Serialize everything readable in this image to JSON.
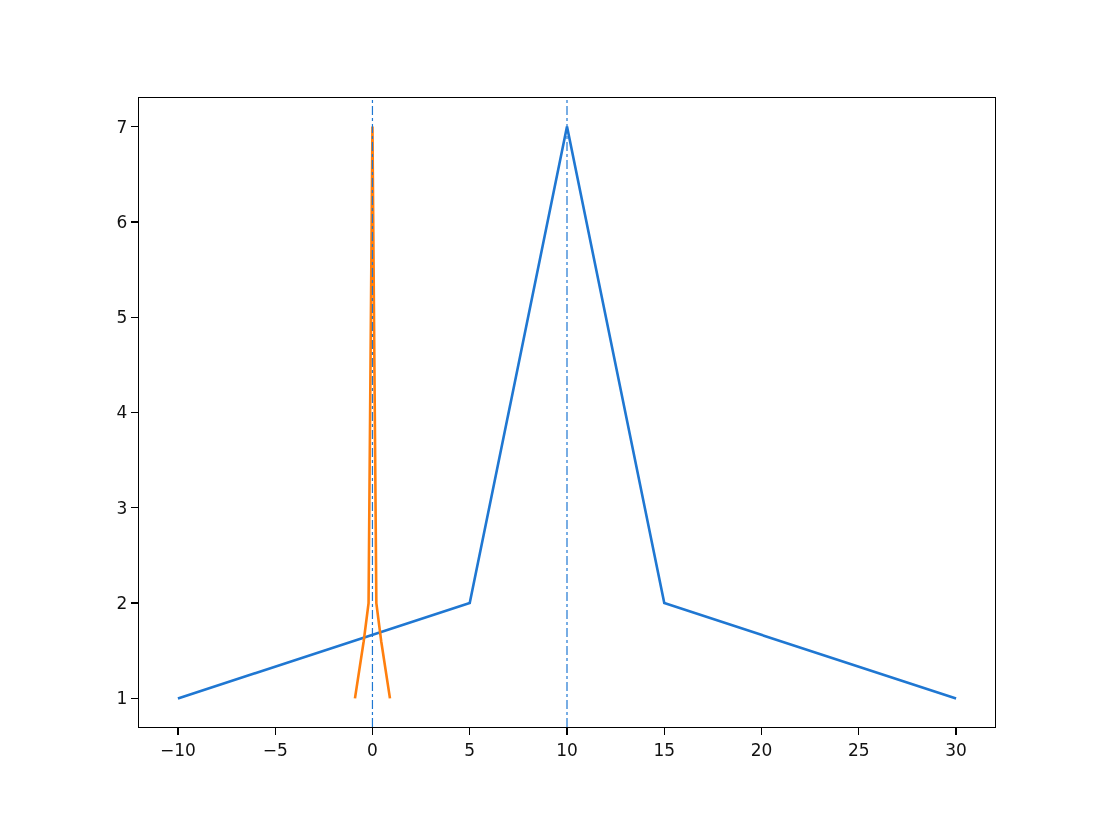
{
  "chart_data": {
    "type": "line",
    "series": [
      {
        "color": "#1f77d2",
        "x": [
          -10,
          5,
          10,
          15,
          30
        ],
        "values": [
          1,
          2,
          7,
          2,
          1
        ]
      },
      {
        "color": "#ff7f0e",
        "x": [
          -0.9,
          -0.45,
          -0.2,
          0,
          0.2,
          0.45,
          0.9
        ],
        "values": [
          1,
          1.6,
          2,
          7,
          2,
          1.6,
          1
        ]
      }
    ],
    "xlim": [
      -12,
      32
    ],
    "xticks": [
      -10,
      -5,
      0,
      5,
      10,
      15,
      20,
      25,
      30
    ],
    "ylim": [
      0.7,
      7.3
    ],
    "yticks": [
      1,
      2,
      3,
      4,
      5,
      6,
      7
    ],
    "ref_lines": [
      {
        "axis": "x",
        "value": 0,
        "color": "#1f77d2",
        "line_style": "dashdot"
      },
      {
        "axis": "x",
        "value": 10,
        "color": "#1f77d2",
        "line_style": "dashdot"
      }
    ]
  }
}
